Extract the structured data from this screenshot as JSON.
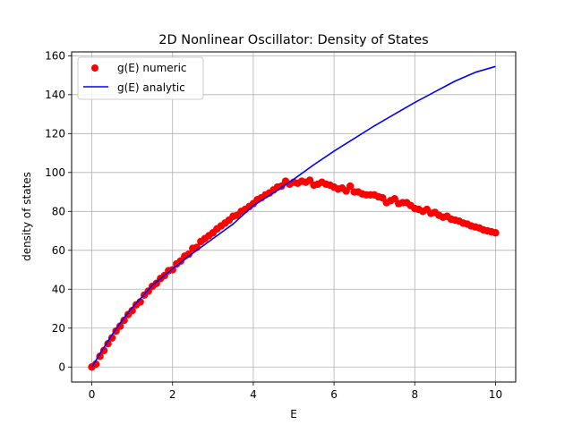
{
  "chart_data": {
    "type": "line",
    "title": "2D Nonlinear Oscillator: Density of States",
    "xlabel": "E",
    "ylabel": "density of states",
    "xlim": [
      -0.5,
      10.5
    ],
    "ylim": [
      -7.7,
      162
    ],
    "grid": true,
    "legend_position": "top-left",
    "x_ticks": [
      0,
      2,
      4,
      6,
      8,
      10
    ],
    "y_ticks": [
      0,
      20,
      40,
      60,
      80,
      100,
      120,
      140,
      160
    ],
    "series": [
      {
        "name": "g(E) numeric",
        "style": "markers",
        "color": "#ff0000",
        "x": [
          0.0,
          0.1,
          0.2,
          0.3,
          0.4,
          0.5,
          0.6,
          0.7,
          0.8,
          0.9,
          1.0,
          1.1,
          1.2,
          1.3,
          1.4,
          1.5,
          1.6,
          1.7,
          1.8,
          1.9,
          2.0,
          2.1,
          2.2,
          2.3,
          2.4,
          2.5,
          2.6,
          2.7,
          2.8,
          2.9,
          3.0,
          3.1,
          3.2,
          3.3,
          3.4,
          3.5,
          3.6,
          3.7,
          3.8,
          3.9,
          4.0,
          4.1,
          4.2,
          4.3,
          4.4,
          4.5,
          4.6,
          4.7,
          4.8,
          4.9,
          5.0,
          5.1,
          5.2,
          5.3,
          5.4,
          5.5,
          5.6,
          5.7,
          5.8,
          5.9,
          6.0,
          6.1,
          6.2,
          6.3,
          6.4,
          6.5,
          6.6,
          6.7,
          6.8,
          6.9,
          7.0,
          7.1,
          7.2,
          7.3,
          7.4,
          7.5,
          7.6,
          7.7,
          7.8,
          7.9,
          8.0,
          8.1,
          8.2,
          8.3,
          8.4,
          8.5,
          8.6,
          8.7,
          8.8,
          8.9,
          9.0,
          9.1,
          9.2,
          9.3,
          9.4,
          9.5,
          9.6,
          9.7,
          9.8,
          9.9,
          10.0
        ],
        "y": [
          0.0,
          1.5,
          5.5,
          8.5,
          12.0,
          15.0,
          18.5,
          21.0,
          24.0,
          27.0,
          29.0,
          32.0,
          33.5,
          37.0,
          39.0,
          41.5,
          43.0,
          45.5,
          47.0,
          49.5,
          50.0,
          53.0,
          54.5,
          57.0,
          58.0,
          61.0,
          61.5,
          64.5,
          66.0,
          67.5,
          69.0,
          71.0,
          72.5,
          74.0,
          75.5,
          77.5,
          78.0,
          80.0,
          81.0,
          82.5,
          84.0,
          86.0,
          87.0,
          88.5,
          89.5,
          91.0,
          92.5,
          93.0,
          95.5,
          94.0,
          95.0,
          94.5,
          95.5,
          95.0,
          96.0,
          93.5,
          94.0,
          95.0,
          94.0,
          93.5,
          92.5,
          91.5,
          92.0,
          90.5,
          93.0,
          90.0,
          90.0,
          89.0,
          88.5,
          88.5,
          88.5,
          87.5,
          87.0,
          84.5,
          85.5,
          86.5,
          84.0,
          84.5,
          84.5,
          83.0,
          81.5,
          81.0,
          80.0,
          81.0,
          79.0,
          79.5,
          78.0,
          77.0,
          77.5,
          76.0,
          75.5,
          75.0,
          74.0,
          73.5,
          72.5,
          72.0,
          71.5,
          70.5,
          70.0,
          69.5,
          69.0
        ]
      },
      {
        "name": "g(E) analytic",
        "style": "line",
        "color": "#0000ff",
        "x": [
          0.0,
          0.25,
          0.5,
          0.75,
          1.0,
          1.5,
          2.0,
          2.5,
          3.0,
          3.5,
          4.0,
          4.5,
          5.0,
          5.5,
          6.0,
          6.5,
          7.0,
          7.5,
          8.0,
          8.5,
          9.0,
          9.5,
          10.0
        ],
        "y": [
          0.0,
          8.5,
          16.5,
          24.0,
          30.5,
          42.0,
          50.5,
          58.5,
          66.0,
          73.5,
          83.0,
          89.5,
          96.5,
          104.0,
          111.0,
          117.5,
          124.0,
          130.0,
          136.0,
          141.5,
          147.0,
          151.5,
          154.5
        ]
      }
    ]
  }
}
